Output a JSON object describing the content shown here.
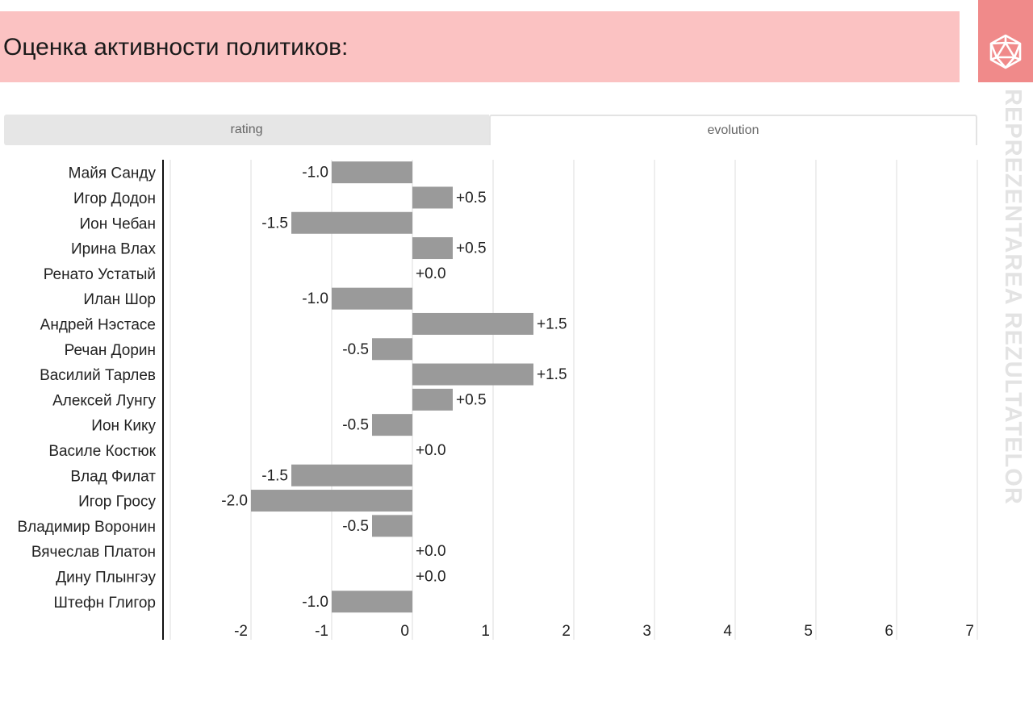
{
  "header": {
    "title": "Оценка активности политиков:"
  },
  "sidebar": {
    "brand_text": "REPREZENTAREA REZULTATELOR"
  },
  "tabs": [
    {
      "label": "rating"
    },
    {
      "label": "evolution"
    }
  ],
  "icons": {
    "logo": "icosahedron-logo-icon"
  },
  "colors": {
    "header_bg": "#fbc2c2",
    "logo_bg": "#f08a8a",
    "bar": "#9a9a9a",
    "grid": "#dddddd",
    "axis": "#111111"
  },
  "chart_data": {
    "type": "bar",
    "orientation": "horizontal",
    "categories": [
      "Майя Санду",
      "Игор Додон",
      "Ион Чебан",
      "Ирина Влах",
      "Ренато Устатый",
      "Илан Шор",
      "Андрей Нэстасе",
      "Речан Дорин",
      "Василий Тарлев",
      "Алексей Лунгу",
      "Ион Кику",
      "Василе Костюк",
      "Влад Филат",
      "Игор Гросу",
      "Владимир Воронин",
      "Вячеслав Платон",
      "Дину Плынгэу",
      "Штефн Глигор"
    ],
    "values": [
      -1.0,
      0.5,
      -1.5,
      0.5,
      0.0,
      -1.0,
      1.5,
      -0.5,
      1.5,
      0.5,
      -0.5,
      0.0,
      -1.5,
      -2.0,
      -0.5,
      0.0,
      0.0,
      -1.0
    ],
    "data_labels": [
      "-1.0",
      "+0.5",
      "-1.5",
      "+0.5",
      "+0.0",
      "-1.0",
      "+1.5",
      "-0.5",
      "+1.5",
      "+0.5",
      "-0.5",
      "+0.0",
      "-1.5",
      "-2.0",
      "-0.5",
      "+0.0",
      "+0.0",
      "-1.0"
    ],
    "xticks": [
      "-2",
      "-1",
      "0",
      "1",
      "2",
      "3",
      "4",
      "5",
      "6",
      "7"
    ],
    "xlim": [
      -3,
      7
    ],
    "grid": true,
    "title": "",
    "xlabel": "",
    "ylabel": ""
  }
}
